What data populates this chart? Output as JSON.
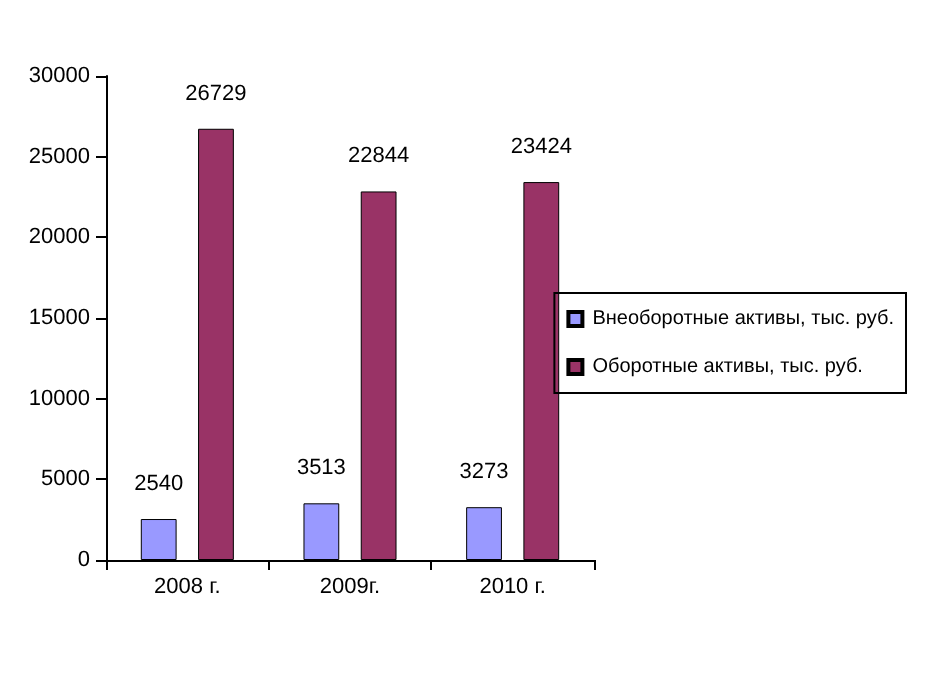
{
  "chart_data": {
    "type": "bar",
    "categories": [
      "2008 г.",
      "2009г.",
      "2010 г."
    ],
    "series": [
      {
        "name": "Внеоборотные активы, тыс. руб.",
        "color": "#9999ff",
        "values": [
          2540,
          3513,
          3273
        ]
      },
      {
        "name": "Оборотные активы, тыс. руб.",
        "color": "#993366",
        "values": [
          26729,
          22844,
          23424
        ]
      }
    ],
    "ylim": [
      0,
      30000
    ],
    "yticks": [
      0,
      5000,
      10000,
      15000,
      20000,
      25000,
      30000
    ],
    "grid": false,
    "legend": "right",
    "data_labels": true
  }
}
